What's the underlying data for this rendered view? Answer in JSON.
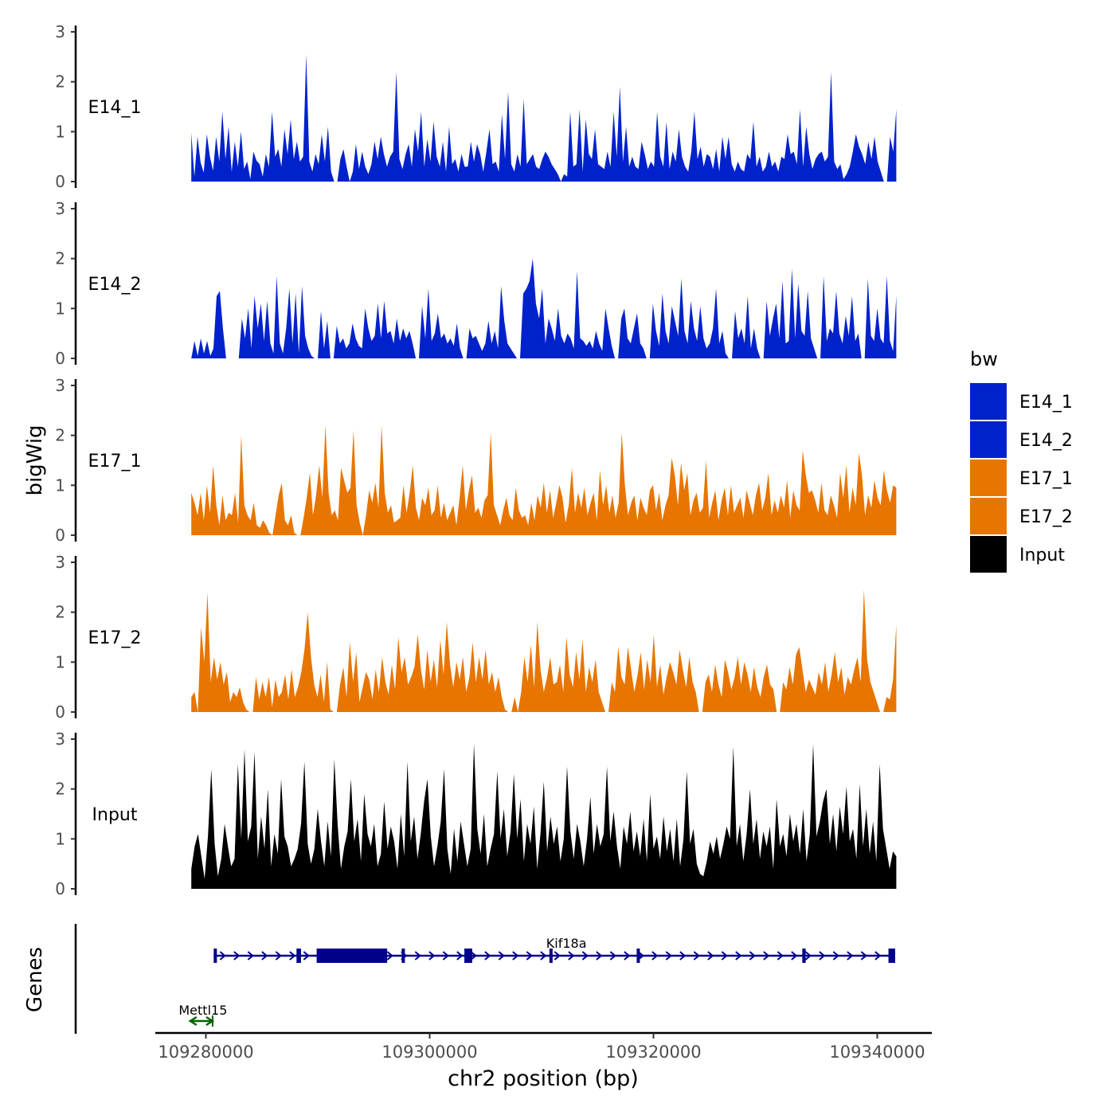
{
  "chart_data": {
    "type": "area",
    "title": "",
    "xlabel": "chr2 position (bp)",
    "ylabel": "bigWig",
    "genes_label": "Genes",
    "xlim": [
      109272000,
      109347000
    ],
    "ylim": [
      0,
      3
    ],
    "x_ticks": [
      109280000,
      109300000,
      109320000,
      109340000
    ],
    "x_tick_labels": [
      "109280000",
      "109300000",
      "109320000",
      "109340000"
    ],
    "y_ticks": [
      0,
      1,
      2,
      3
    ],
    "y_tick_labels": [
      "0",
      "1",
      "2",
      "3"
    ],
    "track_start": 109278700,
    "track_end": 109341700,
    "legend": {
      "title": "bw",
      "position": "right",
      "entries": [
        "E14_1",
        "E14_2",
        "E17_1",
        "E17_2",
        "Input"
      ]
    },
    "series": [
      {
        "name": "E14_1",
        "color": "#0022CC",
        "values": [
          0.98,
          0.1,
          0.9,
          0.38,
          0.18,
          0.95,
          0.5,
          0.22,
          0.9,
          0.4,
          1.4,
          0.45,
          1.1,
          0.2,
          0.8,
          0.3,
          1.0,
          0.25,
          0.4,
          0.05,
          0.6,
          0.42,
          0.35,
          0.1,
          0.55,
          0.3,
          1.4,
          0.5,
          0.65,
          0.3,
          1.05,
          0.55,
          1.25,
          0.45,
          0.8,
          0.4,
          0.5,
          2.55,
          0.4,
          0.2,
          0.55,
          0.35,
          0.95,
          0.4,
          1.1,
          0.2,
          0.0,
          0.0,
          0.45,
          0.65,
          0.3,
          0.0,
          0.2,
          0.75,
          0.25,
          0.6,
          0.3,
          0.15,
          0.35,
          0.8,
          0.45,
          0.9,
          0.55,
          0.3,
          0.5,
          0.6,
          2.2,
          0.45,
          0.25,
          0.55,
          0.75,
          0.3,
          1.05,
          0.6,
          1.4,
          0.3,
          0.85,
          0.4,
          1.2,
          0.5,
          0.3,
          0.8,
          0.2,
          1.1,
          0.35,
          0.45,
          0.2,
          0.55,
          0.3,
          0.3,
          0.8,
          0.4,
          0.75,
          0.55,
          0.2,
          0.6,
          1.05,
          0.35,
          0.4,
          0.2,
          1.35,
          0.45,
          1.8,
          0.35,
          0.2,
          0.55,
          0.3,
          1.65,
          0.35,
          0.45,
          0.55,
          0.3,
          0.25,
          0.45,
          0.6,
          0.5,
          0.35,
          0.25,
          0.15,
          0.0,
          0.15,
          0.1,
          1.4,
          0.3,
          0.35,
          1.45,
          0.2,
          1.25,
          0.55,
          0.45,
          1.05,
          0.35,
          0.3,
          0.25,
          0.6,
          0.3,
          1.4,
          0.5,
          1.9,
          0.4,
          1.1,
          0.3,
          0.5,
          0.3,
          0.25,
          0.8,
          0.55,
          0.25,
          0.4,
          0.3,
          1.4,
          0.5,
          0.3,
          1.2,
          0.25,
          0.6,
          0.4,
          1.05,
          0.5,
          0.3,
          0.2,
          0.6,
          1.4,
          0.45,
          0.7,
          0.3,
          0.55,
          0.5,
          0.25,
          0.65,
          0.2,
          0.9,
          0.45,
          0.9,
          0.35,
          0.2,
          0.4,
          0.25,
          0.2,
          0.55,
          0.45,
          1.2,
          0.3,
          0.5,
          0.2,
          0.3,
          0.6,
          0.3,
          0.4,
          0.2,
          0.5,
          0.45,
          0.95,
          0.55,
          0.6,
          0.35,
          1.45,
          0.3,
          1.1,
          0.55,
          0.25,
          0.45,
          0.55,
          0.6,
          0.4,
          0.5,
          2.2,
          0.4,
          0.25,
          0.35,
          0.05,
          0.15,
          0.3,
          0.6,
          0.95,
          0.7,
          0.55,
          0.35,
          0.8,
          0.45,
          0.9,
          0.4,
          0.2,
          0.0,
          0.0,
          0.9,
          0.6,
          1.45
        ]
      },
      {
        "name": "E14_2",
        "color": "#0022CC",
        "values": [
          0.0,
          0.35,
          0.05,
          0.4,
          0.1,
          0.35,
          0.05,
          0.2,
          1.25,
          1.35,
          0.6,
          0.0,
          0.0,
          0.0,
          0.0,
          0.0,
          0.8,
          0.4,
          1.0,
          0.2,
          1.25,
          0.6,
          1.1,
          0.35,
          1.15,
          0.3,
          0.1,
          1.65,
          0.3,
          0.1,
          0.6,
          1.4,
          0.3,
          1.3,
          0.1,
          1.45,
          0.45,
          0.2,
          0.05,
          0.0,
          0.0,
          0.95,
          0.2,
          0.75,
          0.0,
          0.0,
          0.65,
          0.3,
          0.4,
          0.2,
          0.3,
          0.7,
          0.4,
          0.25,
          0.2,
          1.0,
          0.6,
          0.35,
          0.45,
          1.1,
          0.4,
          1.15,
          0.5,
          0.55,
          0.3,
          0.8,
          0.35,
          0.6,
          0.4,
          0.55,
          0.3,
          0.0,
          0.0,
          1.05,
          0.4,
          1.4,
          0.35,
          0.5,
          0.9,
          0.4,
          0.5,
          0.3,
          0.4,
          0.25,
          0.7,
          0.2,
          0.0,
          0.0,
          0.6,
          0.4,
          0.45,
          0.3,
          0.15,
          0.3,
          0.75,
          0.3,
          0.55,
          0.2,
          1.45,
          0.75,
          0.3,
          0.2,
          0.1,
          0.0,
          0.0,
          1.3,
          1.4,
          1.55,
          2.0,
          1.1,
          0.8,
          1.4,
          0.3,
          0.8,
          0.6,
          0.35,
          1.0,
          0.45,
          0.3,
          0.5,
          0.4,
          0.2,
          1.75,
          0.4,
          0.35,
          0.25,
          0.35,
          0.2,
          0.55,
          0.3,
          0.15,
          1.0,
          0.6,
          0.25,
          0.0,
          0.0,
          0.8,
          1.0,
          0.4,
          0.3,
          0.6,
          0.9,
          0.3,
          0.2,
          0.0,
          0.0,
          1.1,
          0.55,
          0.25,
          1.3,
          0.55,
          0.3,
          1.05,
          0.75,
          0.45,
          1.6,
          0.55,
          0.3,
          1.15,
          0.6,
          0.35,
          1.05,
          0.4,
          0.2,
          0.3,
          0.6,
          1.4,
          0.3,
          0.55,
          0.1,
          0.0,
          0.0,
          0.95,
          0.4,
          0.6,
          0.3,
          1.25,
          0.2,
          0.6,
          0.2,
          0.0,
          0.0,
          1.15,
          0.45,
          0.8,
          1.1,
          0.4,
          1.55,
          0.3,
          0.35,
          1.8,
          0.4,
          1.5,
          0.55,
          0.45,
          1.35,
          0.4,
          0.2,
          0.0,
          0.0,
          1.65,
          0.35,
          0.6,
          0.5,
          1.35,
          0.5,
          0.3,
          0.85,
          0.45,
          1.25,
          0.35,
          0.5,
          0.0,
          0.0,
          1.6,
          0.45,
          0.35,
          1.0,
          0.4,
          0.3,
          1.65,
          0.35,
          0.15,
          1.25
        ]
      },
      {
        "name": "E17_1",
        "color": "#E87500",
        "values": [
          0.85,
          0.65,
          0.4,
          0.85,
          0.3,
          1.0,
          0.45,
          1.4,
          0.6,
          0.2,
          0.8,
          0.3,
          0.45,
          0.4,
          0.85,
          0.25,
          2.0,
          0.6,
          0.4,
          0.3,
          0.65,
          0.2,
          0.15,
          0.3,
          0.2,
          0.05,
          0.0,
          0.4,
          0.8,
          1.05,
          0.3,
          0.2,
          0.4,
          0.05,
          0.0,
          0.0,
          0.35,
          0.75,
          1.25,
          0.4,
          0.8,
          1.4,
          0.75,
          2.2,
          0.85,
          0.4,
          0.5,
          0.3,
          1.35,
          1.1,
          0.85,
          0.95,
          2.1,
          0.6,
          0.25,
          0.0,
          0.4,
          0.9,
          0.65,
          1.05,
          0.55,
          2.2,
          0.85,
          0.45,
          0.6,
          0.25,
          0.3,
          0.35,
          1.0,
          0.45,
          0.85,
          1.4,
          0.55,
          0.3,
          0.75,
          0.6,
          0.95,
          0.4,
          0.5,
          1.0,
          0.35,
          0.65,
          0.3,
          0.45,
          0.6,
          0.2,
          0.75,
          1.4,
          0.5,
          0.9,
          1.2,
          0.45,
          0.55,
          0.35,
          0.7,
          0.8,
          2.05,
          0.6,
          0.4,
          0.2,
          0.5,
          0.75,
          0.4,
          0.3,
          0.95,
          0.5,
          0.35,
          0.4,
          0.2,
          0.65,
          0.3,
          0.8,
          0.55,
          1.05,
          0.45,
          0.9,
          0.35,
          0.65,
          1.0,
          0.75,
          0.25,
          0.6,
          1.35,
          0.45,
          0.85,
          0.55,
          0.95,
          0.4,
          0.65,
          0.85,
          0.3,
          1.3,
          0.6,
          1.0,
          0.45,
          0.8,
          0.35,
          0.65,
          2.05,
          1.0,
          0.4,
          0.65,
          0.8,
          0.3,
          0.75,
          0.55,
          0.4,
          0.9,
          1.0,
          0.5,
          0.85,
          0.3,
          0.6,
          0.8,
          1.55,
          1.2,
          0.6,
          1.45,
          0.9,
          1.25,
          0.4,
          0.7,
          0.85,
          0.45,
          0.55,
          1.5,
          0.35,
          0.65,
          0.9,
          0.3,
          0.7,
          0.95,
          0.4,
          1.0,
          0.45,
          0.6,
          0.75,
          0.35,
          0.9,
          0.65,
          0.4,
          0.8,
          1.05,
          0.5,
          0.75,
          1.25,
          0.4,
          0.7,
          0.45,
          0.8,
          0.55,
          1.1,
          0.35,
          0.9,
          0.6,
          0.5,
          1.7,
          1.2,
          0.85,
          0.9,
          0.7,
          0.45,
          1.05,
          0.5,
          0.4,
          0.8,
          0.6,
          0.35,
          1.25,
          0.75,
          1.4,
          0.45,
          0.95,
          0.6,
          1.65,
          1.2,
          0.4,
          0.8,
          0.55,
          1.1,
          0.75,
          0.6,
          1.3,
          0.9,
          0.65,
          1.0,
          0.95
        ]
      },
      {
        "name": "E17_2",
        "color": "#E87500",
        "values": [
          0.3,
          0.4,
          0.0,
          1.7,
          1.0,
          2.4,
          0.6,
          1.1,
          0.65,
          1.0,
          0.55,
          0.8,
          0.2,
          0.4,
          0.3,
          0.5,
          0.2,
          0.05,
          0.0,
          0.0,
          0.7,
          0.25,
          0.6,
          0.3,
          0.7,
          0.1,
          0.65,
          0.3,
          0.4,
          0.75,
          0.25,
          0.85,
          0.3,
          0.5,
          0.8,
          1.25,
          2.0,
          1.1,
          0.55,
          0.3,
          0.75,
          0.2,
          1.0,
          0.05,
          0.0,
          0.0,
          0.55,
          0.9,
          0.3,
          1.4,
          0.6,
          1.2,
          0.2,
          0.5,
          0.8,
          0.65,
          0.25,
          0.85,
          0.4,
          1.1,
          0.6,
          0.35,
          0.95,
          0.45,
          1.5,
          0.8,
          1.1,
          0.55,
          0.7,
          0.9,
          1.55,
          0.85,
          0.45,
          1.25,
          0.6,
          1.05,
          0.5,
          1.45,
          0.75,
          1.8,
          0.95,
          0.5,
          1.0,
          0.65,
          1.1,
          0.4,
          0.7,
          1.4,
          0.6,
          1.1,
          0.65,
          1.25,
          0.55,
          0.8,
          0.4,
          0.7,
          0.3,
          0.05,
          0.0,
          0.0,
          0.3,
          0.0,
          0.4,
          1.1,
          0.6,
          1.35,
          0.5,
          1.8,
          0.85,
          0.4,
          0.7,
          1.1,
          0.55,
          0.6,
          0.95,
          0.4,
          1.5,
          0.75,
          0.5,
          1.2,
          0.65,
          1.45,
          0.4,
          0.9,
          0.6,
          1.05,
          0.4,
          0.2,
          0.0,
          0.0,
          0.6,
          0.4,
          1.3,
          0.7,
          0.55,
          1.3,
          0.85,
          0.4,
          0.75,
          1.2,
          0.45,
          1.05,
          0.6,
          1.55,
          0.5,
          0.95,
          0.35,
          0.7,
          1.0,
          0.8,
          0.55,
          1.25,
          0.85,
          0.5,
          1.1,
          0.6,
          0.4,
          0.0,
          0.0,
          0.6,
          0.75,
          0.4,
          0.95,
          0.55,
          0.3,
          1.05,
          0.8,
          0.45,
          0.7,
          1.1,
          0.55,
          1.0,
          0.75,
          0.4,
          0.9,
          0.5,
          0.3,
          0.7,
          0.95,
          0.55,
          0.45,
          0.0,
          0.0,
          0.6,
          0.45,
          0.9,
          0.55,
          1.15,
          1.3,
          0.85,
          0.4,
          0.65,
          0.5,
          0.35,
          0.8,
          0.55,
          1.0,
          0.4,
          0.75,
          1.2,
          0.6,
          0.9,
          0.35,
          0.7,
          0.55,
          0.85,
          1.1,
          0.6,
          2.45,
          1.05,
          0.6,
          0.4,
          0.2,
          0.0,
          0.0,
          0.3,
          0.25,
          0.65,
          1.75
        ]
      },
      {
        "name": "Input",
        "color": "#000000",
        "values": [
          0.4,
          0.85,
          1.1,
          0.65,
          0.2,
          1.05,
          2.4,
          0.9,
          0.25,
          0.6,
          1.3,
          0.85,
          0.45,
          0.6,
          2.5,
          1.0,
          2.8,
          0.95,
          1.25,
          2.75,
          0.6,
          1.45,
          0.8,
          2.0,
          0.45,
          1.1,
          0.7,
          2.2,
          1.05,
          0.85,
          0.45,
          0.6,
          0.8,
          1.3,
          2.55,
          0.9,
          0.5,
          0.8,
          1.6,
          0.95,
          0.45,
          1.35,
          0.65,
          2.6,
          1.3,
          0.4,
          0.85,
          1.15,
          2.2,
          0.95,
          1.4,
          0.55,
          1.9,
          1.1,
          0.85,
          1.3,
          0.45,
          0.7,
          1.75,
          0.8,
          1.25,
          0.95,
          0.4,
          1.5,
          0.65,
          2.55,
          0.95,
          1.45,
          0.6,
          1.1,
          1.75,
          2.2,
          1.05,
          0.45,
          0.85,
          1.35,
          2.4,
          0.8,
          0.3,
          1.2,
          0.55,
          1.35,
          0.9,
          0.45,
          0.8,
          2.9,
          1.2,
          0.7,
          1.5,
          0.45,
          0.8,
          1.1,
          2.35,
          1.0,
          1.6,
          0.65,
          1.15,
          2.3,
          1.0,
          1.8,
          0.55,
          1.3,
          0.9,
          1.65,
          0.4,
          1.1,
          2.15,
          0.75,
          1.45,
          0.9,
          1.25,
          0.55,
          1.0,
          2.45,
          1.15,
          0.6,
          1.3,
          0.95,
          0.45,
          1.0,
          1.85,
          0.7,
          1.3,
          0.85,
          1.1,
          2.45,
          0.95,
          1.55,
          0.85,
          0.4,
          1.25,
          0.9,
          1.55,
          0.75,
          1.15,
          0.65,
          1.4,
          0.55,
          1.9,
          0.8,
          1.05,
          0.6,
          1.45,
          0.75,
          1.2,
          0.55,
          1.4,
          0.45,
          1.0,
          2.35,
          0.9,
          1.2,
          0.5,
          0.3,
          0.25,
          0.55,
          0.95,
          0.7,
          1.05,
          0.6,
          0.9,
          1.25,
          1.0,
          2.85,
          0.85,
          1.3,
          0.55,
          1.1,
          2.0,
          0.9,
          1.4,
          0.6,
          1.15,
          0.85,
          1.25,
          0.4,
          1.8,
          0.85,
          1.1,
          0.65,
          1.5,
          0.95,
          1.3,
          0.7,
          1.6,
          0.55,
          1.1,
          2.9,
          1.05,
          1.35,
          1.75,
          2.0,
          0.9,
          1.5,
          0.75,
          1.65,
          1.1,
          2.05,
          0.95,
          1.2,
          0.6,
          2.1,
          0.85,
          1.6,
          0.7,
          1.35,
          0.55,
          2.5,
          1.2,
          0.8,
          0.4,
          0.75,
          0.65
        ]
      }
    ],
    "genes": [
      {
        "name": "Kif18a",
        "color": "#00008B",
        "start": 109280700,
        "end": 109341600,
        "strand": "+",
        "row": 0,
        "exons": [
          {
            "start": 109280700,
            "end": 109280900
          },
          {
            "start": 109288100,
            "end": 109288500
          },
          {
            "start": 109289900,
            "end": 109296200
          },
          {
            "start": 109297500,
            "end": 109297700
          },
          {
            "start": 109303100,
            "end": 109303800
          },
          {
            "start": 109310700,
            "end": 109310900
          },
          {
            "start": 109318500,
            "end": 109318700
          },
          {
            "start": 109333300,
            "end": 109333600
          },
          {
            "start": 109341000,
            "end": 109341600
          }
        ]
      },
      {
        "name": "Mettl15",
        "color": "#006400",
        "start": 109278600,
        "end": 109280600,
        "strand": "bidirectional",
        "row": 1,
        "exons": []
      }
    ]
  }
}
